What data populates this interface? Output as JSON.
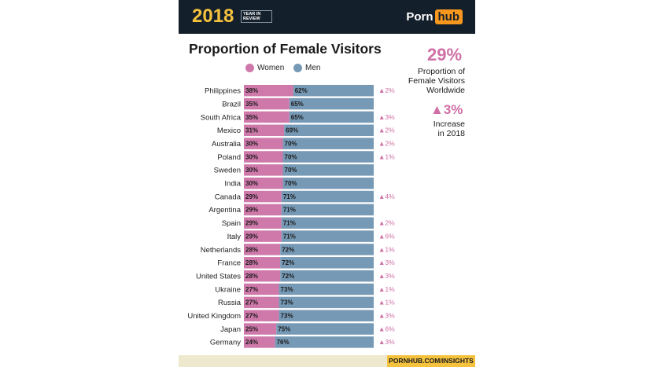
{
  "header": {
    "year": "2018",
    "year_caption_line1": "YEAR IN",
    "year_caption_line2": "REVIEW",
    "brand_part1": "Porn",
    "brand_part2": "hub"
  },
  "sidebar": {
    "proportion_value": "29%",
    "proportion_label_line1": "Proportion of",
    "proportion_label_line2": "Female Visitors",
    "proportion_label_line3": "Worldwide",
    "increase_value": "▲3%",
    "increase_label_line1": "Increase",
    "increase_label_line2": "in 2018"
  },
  "footer": {
    "url": "PORNHUB.COM/INSIGHTS"
  },
  "colors": {
    "women": "#cf79ab",
    "men": "#7699b5",
    "increase": "#cf6fa6",
    "header_bg": "#131f2b",
    "year": "#f4c23d"
  },
  "chart_data": {
    "type": "bar",
    "stacked": true,
    "orientation": "horizontal",
    "title": "Proportion of Female Visitors",
    "legend": [
      "Women",
      "Men"
    ],
    "legend_position": "top",
    "categories": [
      "Philippines",
      "Brazil",
      "South Africa",
      "Mexico",
      "Australia",
      "Poland",
      "Sweden",
      "India",
      "Canada",
      "Argentina",
      "Spain",
      "Italy",
      "Netherlands",
      "France",
      "United States",
      "Ukraine",
      "Russia",
      "United Kingdom",
      "Japan",
      "Germany"
    ],
    "series": [
      {
        "name": "Women",
        "values": [
          38,
          35,
          35,
          31,
          30,
          30,
          30,
          30,
          29,
          29,
          29,
          29,
          28,
          28,
          28,
          27,
          27,
          27,
          25,
          24
        ]
      },
      {
        "name": "Men",
        "values": [
          62,
          65,
          65,
          69,
          70,
          70,
          70,
          70,
          71,
          71,
          71,
          71,
          72,
          72,
          72,
          73,
          73,
          73,
          75,
          76
        ]
      }
    ],
    "change": [
      "▲2%",
      "",
      "▲3%",
      "▲2%",
      "▲2%",
      "▲1%",
      "",
      "",
      "▲4%",
      "",
      "▲2%",
      "▲6%",
      "▲1%",
      "▲3%",
      "▲3%",
      "▲1%",
      "▲1%",
      "▲3%",
      "▲6%",
      "▲3%"
    ],
    "xlim": [
      0,
      100
    ]
  }
}
